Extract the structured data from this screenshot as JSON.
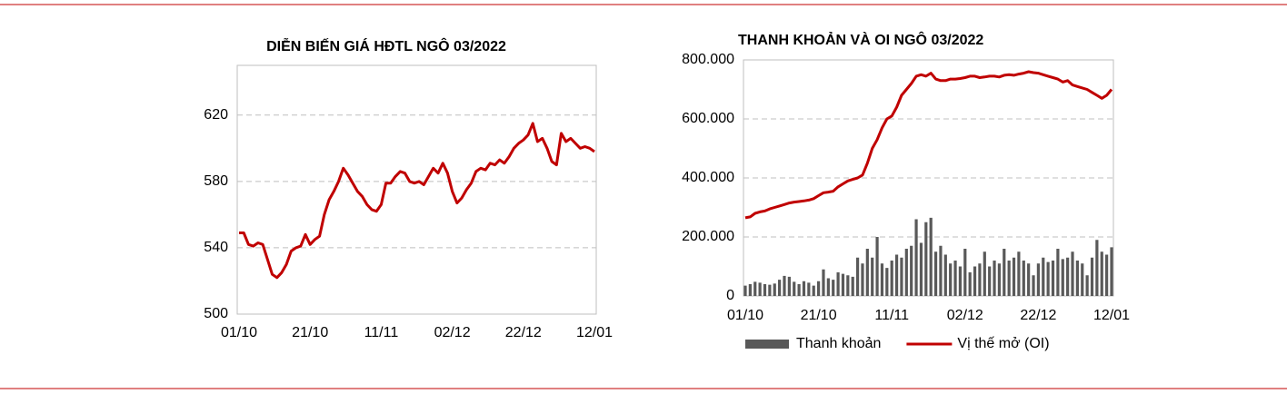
{
  "chart_data": [
    {
      "type": "line",
      "title": "DIỄN BIẾN GIÁ HĐTL NGÔ 03/2022",
      "categories": [
        "01/10",
        null,
        null,
        null,
        null,
        null,
        null,
        null,
        null,
        null,
        null,
        null,
        null,
        null,
        null,
        "21/10",
        null,
        null,
        null,
        null,
        null,
        null,
        null,
        null,
        null,
        null,
        null,
        null,
        null,
        null,
        "11/11",
        null,
        null,
        null,
        null,
        null,
        null,
        null,
        null,
        null,
        null,
        null,
        null,
        null,
        null,
        "02/12",
        null,
        null,
        null,
        null,
        null,
        null,
        null,
        null,
        null,
        null,
        null,
        null,
        null,
        null,
        "22/12",
        null,
        null,
        null,
        null,
        null,
        null,
        null,
        null,
        null,
        null,
        null,
        null,
        null,
        null,
        "12/01"
      ],
      "values": [
        549,
        549,
        542,
        541,
        543,
        542,
        533,
        524,
        522,
        525,
        530,
        538,
        540,
        541,
        548,
        542,
        545,
        547,
        560,
        569,
        574,
        580,
        588,
        584,
        579,
        574,
        571,
        566,
        563,
        562,
        566,
        579,
        579,
        583,
        586,
        585,
        580,
        579,
        580,
        578,
        583,
        588,
        585,
        591,
        585,
        574,
        567,
        570,
        575,
        579,
        586,
        588,
        587,
        591,
        590,
        593,
        591,
        595,
        600,
        603,
        605,
        608,
        615,
        604,
        606,
        600,
        592,
        590,
        609,
        604,
        606,
        603,
        600,
        601,
        600,
        598
      ],
      "color": "#c00000",
      "ylim": [
        500,
        650
      ],
      "yticks": [
        500,
        540,
        580,
        620
      ],
      "grid": true
    },
    {
      "type": "combo",
      "title": "THANH KHOẢN VÀ OI NGÔ 03/2022",
      "categories": [
        "01/10",
        null,
        null,
        null,
        null,
        null,
        null,
        null,
        null,
        null,
        null,
        null,
        null,
        null,
        null,
        "21/10",
        null,
        null,
        null,
        null,
        null,
        null,
        null,
        null,
        null,
        null,
        null,
        null,
        null,
        null,
        "11/11",
        null,
        null,
        null,
        null,
        null,
        null,
        null,
        null,
        null,
        null,
        null,
        null,
        null,
        null,
        "02/12",
        null,
        null,
        null,
        null,
        null,
        null,
        null,
        null,
        null,
        null,
        null,
        null,
        null,
        null,
        "22/12",
        null,
        null,
        null,
        null,
        null,
        null,
        null,
        null,
        null,
        null,
        null,
        null,
        null,
        null,
        "12/01"
      ],
      "series": [
        {
          "name": "Thanh khoản",
          "type": "bar",
          "color": "#595959",
          "values": [
            35000,
            40000,
            48000,
            45000,
            40000,
            38000,
            42000,
            55000,
            68000,
            65000,
            48000,
            40000,
            50000,
            45000,
            35000,
            50000,
            90000,
            60000,
            55000,
            80000,
            75000,
            70000,
            65000,
            130000,
            110000,
            160000,
            130000,
            200000,
            110000,
            95000,
            120000,
            140000,
            130000,
            160000,
            170000,
            260000,
            180000,
            250000,
            265000,
            150000,
            170000,
            140000,
            110000,
            120000,
            100000,
            160000,
            80000,
            100000,
            110000,
            150000,
            100000,
            120000,
            110000,
            160000,
            120000,
            130000,
            150000,
            120000,
            110000,
            70000,
            110000,
            130000,
            115000,
            120000,
            160000,
            125000,
            130000,
            150000,
            120000,
            110000,
            70000,
            130000,
            190000,
            150000,
            140000,
            165000
          ]
        },
        {
          "name": "Vị thế mở (OI)",
          "type": "line",
          "color": "#c00000",
          "values": [
            265000,
            268000,
            280000,
            285000,
            288000,
            295000,
            300000,
            305000,
            310000,
            315000,
            318000,
            320000,
            322000,
            325000,
            330000,
            340000,
            350000,
            352000,
            355000,
            370000,
            380000,
            390000,
            395000,
            400000,
            410000,
            450000,
            500000,
            530000,
            570000,
            600000,
            610000,
            640000,
            680000,
            700000,
            720000,
            745000,
            750000,
            745000,
            755000,
            735000,
            730000,
            730000,
            735000,
            735000,
            737000,
            740000,
            745000,
            745000,
            740000,
            742000,
            745000,
            745000,
            742000,
            748000,
            750000,
            748000,
            752000,
            755000,
            760000,
            757000,
            755000,
            750000,
            745000,
            740000,
            735000,
            725000,
            730000,
            715000,
            710000,
            705000,
            700000,
            690000,
            680000,
            670000,
            680000,
            700000
          ]
        }
      ],
      "ylim": [
        0,
        800000
      ],
      "yticks": [
        0,
        {
          "value": 200000,
          "label": "200.000"
        },
        {
          "value": 400000,
          "label": "400.000"
        },
        {
          "value": 600000,
          "label": "600.000"
        },
        {
          "value": 800000,
          "label": "800.000"
        }
      ],
      "grid": true,
      "legend": "bottom"
    }
  ]
}
